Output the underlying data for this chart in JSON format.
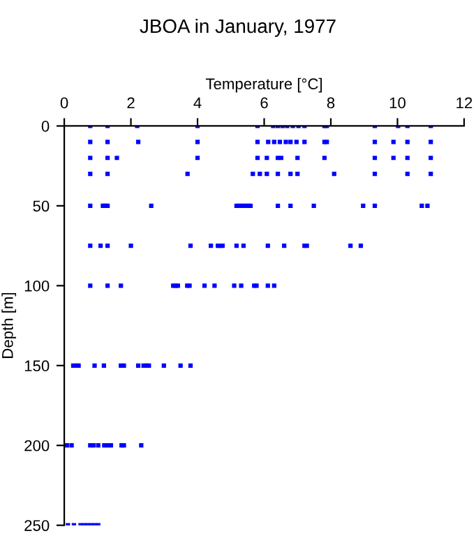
{
  "chart_data": {
    "type": "scatter",
    "title": "JBOA in January, 1977",
    "xlabel": "Temperature [°C]",
    "ylabel": "Depth [m]",
    "xlim": [
      0,
      12
    ],
    "xticks": [
      0,
      2,
      4,
      6,
      8,
      10,
      12
    ],
    "ylim": [
      250,
      0
    ],
    "yticks": [
      0,
      50,
      100,
      150,
      200,
      250
    ],
    "grid": false,
    "marker": "square",
    "legend": false,
    "series": [
      {
        "color": "#0000ff",
        "x": [
          0.78,
          1.3,
          2.19,
          4.0,
          5.8,
          6.27,
          6.41,
          6.55,
          6.69,
          6.86,
          7.03,
          7.21,
          7.81,
          7.88,
          9.32,
          10.02,
          10.3,
          11.0,
          0.78,
          1.3,
          2.22,
          4.0,
          5.8,
          6.12,
          6.3,
          6.47,
          6.65,
          6.79,
          6.97,
          7.21,
          7.81,
          7.88,
          9.32,
          9.88,
          10.3,
          11.0,
          0.78,
          1.3,
          1.58,
          4.0,
          5.8,
          6.08,
          6.41,
          6.51,
          7.0,
          7.81,
          9.32,
          9.88,
          10.3,
          11.0,
          0.78,
          1.3,
          3.7,
          5.66,
          5.87,
          6.08,
          6.41,
          6.79,
          7.0,
          8.1,
          9.32,
          10.3,
          11.0,
          0.78,
          1.16,
          1.23,
          1.3,
          2.61,
          5.17,
          5.24,
          5.31,
          5.38,
          5.45,
          5.52,
          5.59,
          6.41,
          6.79,
          7.49,
          8.97,
          9.32,
          10.73,
          10.9,
          0.78,
          1.09,
          1.3,
          2.0,
          3.79,
          4.4,
          4.61,
          4.68,
          4.75,
          5.17,
          5.38,
          6.11,
          6.6,
          7.21,
          7.28,
          8.59,
          8.9,
          0.78,
          1.3,
          1.7,
          3.27,
          3.34,
          3.41,
          3.69,
          3.76,
          4.21,
          4.51,
          5.1,
          5.31,
          5.7,
          5.77,
          6.11,
          6.3,
          0.27,
          0.36,
          0.43,
          0.91,
          1.19,
          1.7,
          1.79,
          2.22,
          2.38,
          2.47,
          2.54,
          2.99,
          3.49,
          3.79,
          0.08,
          0.22,
          0.78,
          0.88,
          1.02,
          1.2,
          1.3,
          1.4,
          1.72,
          1.79,
          2.31,
          0.11,
          0.29,
          0.49,
          0.6,
          0.7,
          0.81,
          0.92,
          1.02
        ],
        "values": [
          0,
          0,
          0,
          0,
          0,
          0,
          0,
          0,
          0,
          0,
          0,
          0,
          0,
          0,
          0,
          0,
          0,
          0,
          10,
          10,
          10,
          10,
          10,
          10,
          10,
          10,
          10,
          10,
          10,
          10,
          10,
          10,
          10,
          10,
          10,
          10,
          20,
          20,
          20,
          20,
          20,
          20,
          20,
          20,
          20,
          20,
          20,
          20,
          20,
          20,
          30,
          30,
          30,
          30,
          30,
          30,
          30,
          30,
          30,
          30,
          30,
          30,
          30,
          50,
          50,
          50,
          50,
          50,
          50,
          50,
          50,
          50,
          50,
          50,
          50,
          50,
          50,
          50,
          50,
          50,
          50,
          50,
          75,
          75,
          75,
          75,
          75,
          75,
          75,
          75,
          75,
          75,
          75,
          75,
          75,
          75,
          75,
          75,
          75,
          100,
          100,
          100,
          100,
          100,
          100,
          100,
          100,
          100,
          100,
          100,
          100,
          100,
          100,
          100,
          100,
          150,
          150,
          150,
          150,
          150,
          150,
          150,
          150,
          150,
          150,
          150,
          150,
          150,
          150,
          200,
          200,
          200,
          200,
          200,
          200,
          200,
          200,
          200,
          200,
          200,
          250,
          250,
          250,
          250,
          250,
          250,
          250,
          250
        ]
      }
    ]
  }
}
